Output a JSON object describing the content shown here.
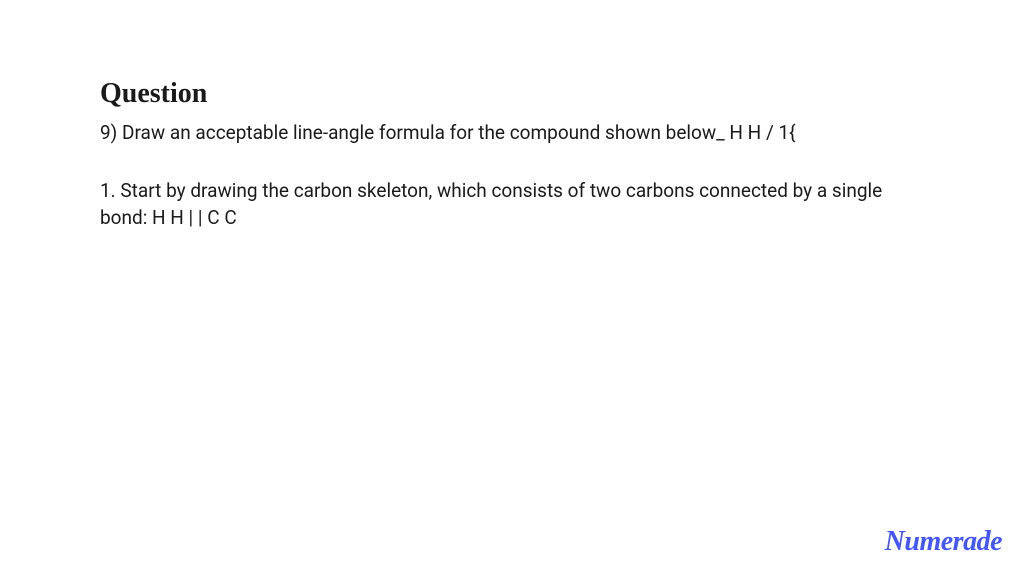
{
  "heading": "Question",
  "question_text": "9) Draw an acceptable line-angle formula for the compound shown below_ H H / 1{",
  "answer_text": "1. Start by drawing the carbon skeleton, which consists of two carbons connected by a single bond: H H | | C C",
  "brand": "Numerade",
  "colors": {
    "background": "#ffffff",
    "text": "#1a1a1a",
    "brand": "#4255ff"
  },
  "typography": {
    "heading_fontsize": 28,
    "body_fontsize": 19,
    "heading_family": "serif",
    "body_family": "sans-serif"
  }
}
